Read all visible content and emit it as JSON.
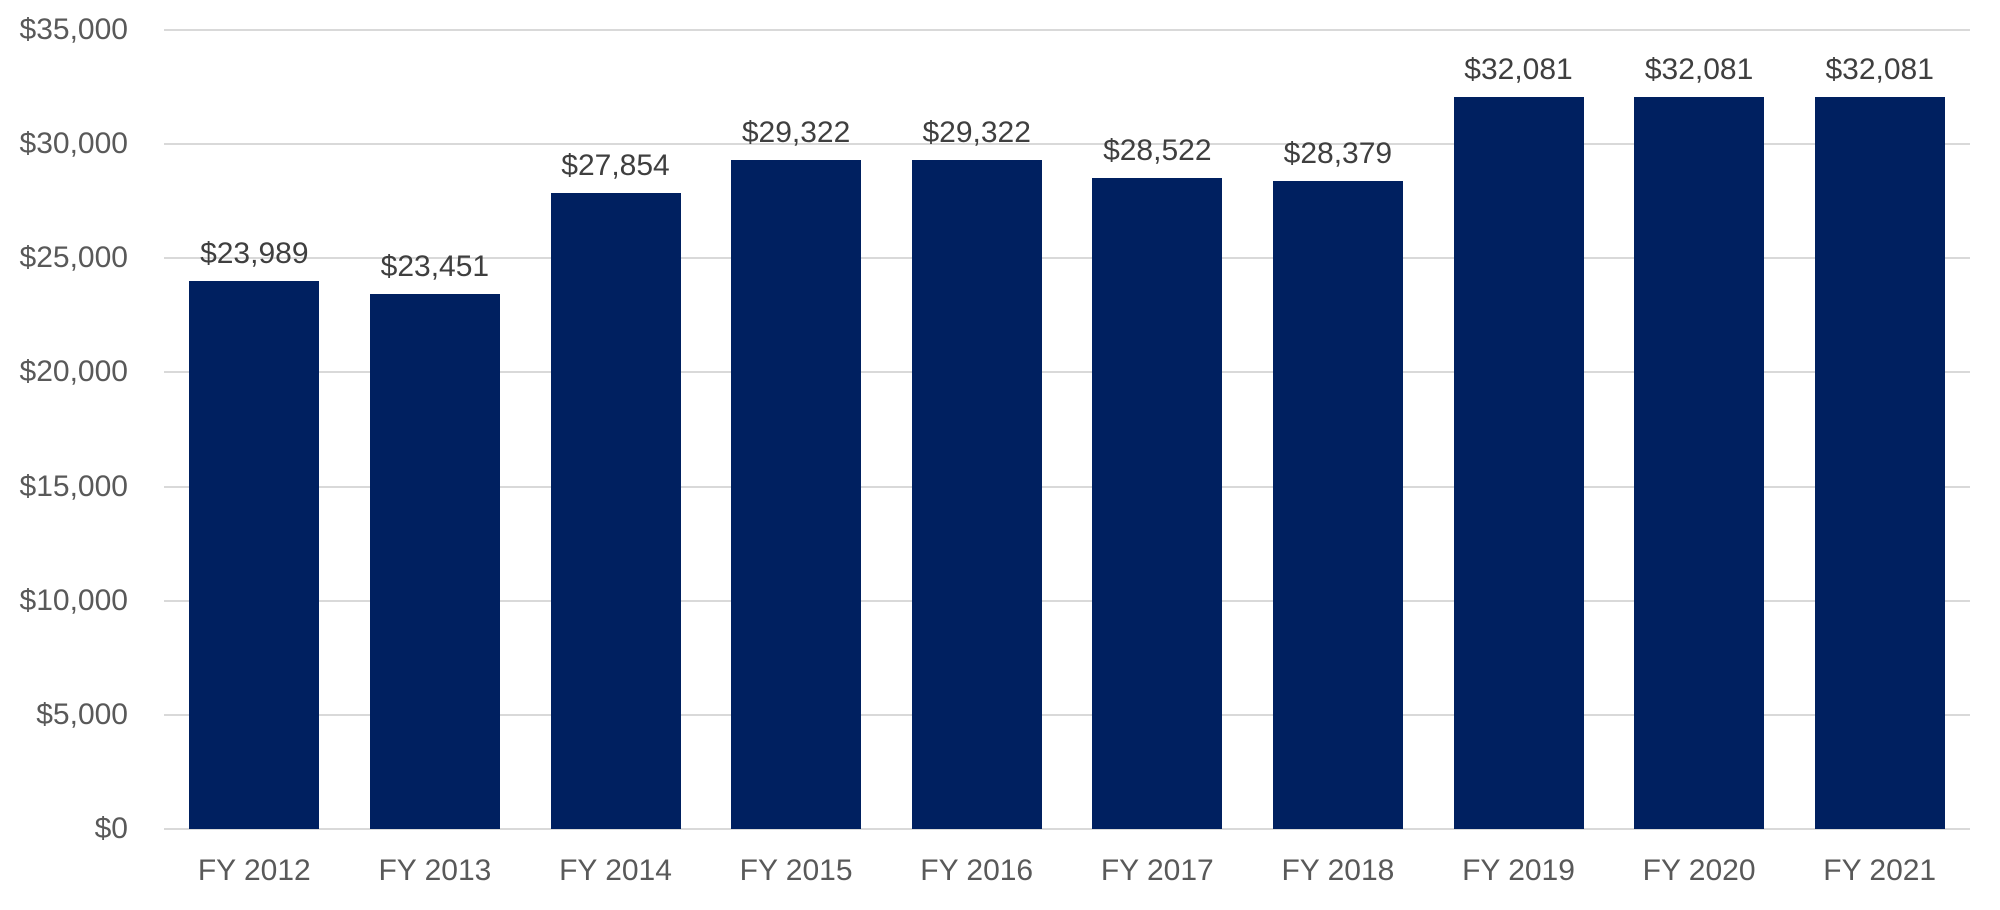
{
  "chart_data": {
    "type": "bar",
    "title": "",
    "xlabel": "",
    "ylabel": "",
    "categories": [
      "FY 2012",
      "FY 2013",
      "FY 2014",
      "FY 2015",
      "FY 2016",
      "FY 2017",
      "FY 2018",
      "FY 2019",
      "FY 2020",
      "FY 2021"
    ],
    "values": [
      23989,
      23451,
      27854,
      29322,
      29322,
      28522,
      28379,
      32081,
      32081,
      32081
    ],
    "value_labels": [
      "$23,989",
      "$23,451",
      "$27,854",
      "$29,322",
      "$29,322",
      "$28,522",
      "$28,379",
      "$32,081",
      "$32,081",
      "$32,081"
    ],
    "ylim": [
      0,
      35000
    ],
    "ytick_step": 5000,
    "yticks": [
      {
        "value": 35000,
        "label": "$35,000"
      },
      {
        "value": 30000,
        "label": "$30,000"
      },
      {
        "value": 25000,
        "label": "$25,000"
      },
      {
        "value": 20000,
        "label": "$20,000"
      },
      {
        "value": 15000,
        "label": "$15,000"
      },
      {
        "value": 10000,
        "label": "$10,000"
      },
      {
        "value": 5000,
        "label": "$5,000"
      },
      {
        "value": 0,
        "label": "$0"
      }
    ],
    "grid": true,
    "legend": false,
    "colors": {
      "bar": "#002060",
      "gridline": "#d9d9d9",
      "axis_tick_label": "#595959",
      "data_label": "#3f3f3f",
      "background": "#ffffff"
    }
  }
}
